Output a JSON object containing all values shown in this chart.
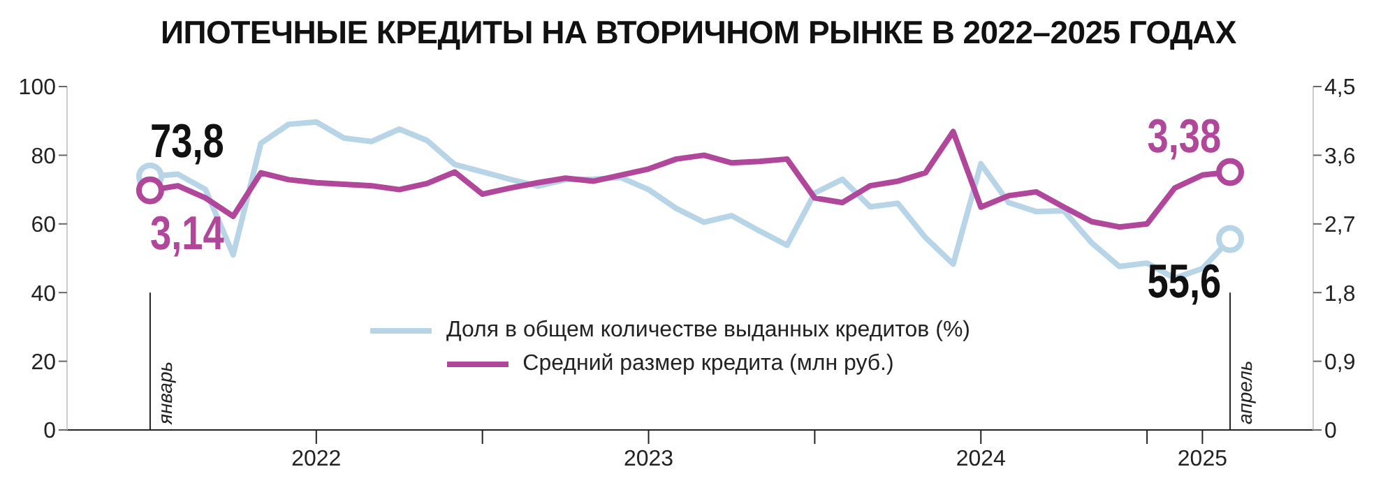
{
  "chart_data": {
    "type": "line",
    "title": "ИПОТЕЧНЫЕ КРЕДИТЫ НА ВТОРИЧНОМ РЫНКЕ В 2022–2025 ГОДАХ",
    "x": [
      "2022-01",
      "2022-02",
      "2022-03",
      "2022-04",
      "2022-05",
      "2022-06",
      "2022-07",
      "2022-08",
      "2022-09",
      "2022-10",
      "2022-11",
      "2022-12",
      "2023-01",
      "2023-02",
      "2023-03",
      "2023-04",
      "2023-05",
      "2023-06",
      "2023-07",
      "2023-08",
      "2023-09",
      "2023-10",
      "2023-11",
      "2023-12",
      "2024-01",
      "2024-02",
      "2024-03",
      "2024-04",
      "2024-05",
      "2024-06",
      "2024-07",
      "2024-08",
      "2024-09",
      "2024-10",
      "2024-11",
      "2024-12",
      "2025-01",
      "2025-02",
      "2025-03",
      "2025-04"
    ],
    "series": [
      {
        "name": "Доля в общем количестве выданных кредитов (%)",
        "color": "#b7d5e6",
        "values": [
          73.8,
          74.5,
          70,
          51,
          83.5,
          89,
          89.7,
          85,
          84,
          87.6,
          84.3,
          77.3,
          75.2,
          73,
          71,
          72.9,
          73,
          73.5,
          70,
          64.5,
          60.5,
          62.4,
          58,
          53.8,
          69,
          73,
          65,
          66,
          56,
          48.3,
          77.5,
          66.2,
          63.6,
          63.8,
          54.5,
          47.6,
          48.6,
          44.2,
          47,
          55.6
        ],
        "value_labels": [
          "73,8",
          null,
          null,
          null,
          null,
          null,
          null,
          null,
          null,
          null,
          null,
          null,
          null,
          null,
          null,
          null,
          null,
          null,
          null,
          null,
          null,
          null,
          null,
          null,
          null,
          null,
          null,
          null,
          null,
          null,
          null,
          null,
          null,
          null,
          null,
          null,
          null,
          null,
          null,
          "55,6"
        ]
      },
      {
        "name": "Средний размер кредита (млн руб.)",
        "color": "#b0479a",
        "axis": "y2",
        "values": [
          3.14,
          3.2,
          3.04,
          2.8,
          3.37,
          3.28,
          3.24,
          3.22,
          3.2,
          3.15,
          3.23,
          3.38,
          3.09,
          3.17,
          3.24,
          3.3,
          3.26,
          3.34,
          3.42,
          3.55,
          3.6,
          3.5,
          3.52,
          3.55,
          3.04,
          2.98,
          3.2,
          3.26,
          3.37,
          3.91,
          2.92,
          3.07,
          3.12,
          2.92,
          2.73,
          2.66,
          2.7,
          3.17,
          3.34,
          3.38
        ],
        "value_labels": [
          "3,14",
          null,
          null,
          null,
          null,
          null,
          null,
          null,
          null,
          null,
          null,
          null,
          null,
          null,
          null,
          null,
          null,
          null,
          null,
          null,
          null,
          null,
          null,
          null,
          null,
          null,
          null,
          null,
          null,
          null,
          null,
          null,
          null,
          null,
          null,
          null,
          null,
          null,
          null,
          "3,38"
        ]
      }
    ],
    "xlim": [
      "2021-10",
      "2025-07"
    ],
    "xticks": [
      {
        "value": "2022-07",
        "label": "2022"
      },
      {
        "value": "2023-01",
        "label": null
      },
      {
        "value": "2023-07",
        "label": "2023"
      },
      {
        "value": "2024-01",
        "label": null
      },
      {
        "value": "2024-07",
        "label": "2024"
      },
      {
        "value": "2025-01",
        "label": null
      },
      {
        "value": "2025-03",
        "label": "2025"
      }
    ],
    "ylim": [
      0,
      100
    ],
    "yticks": [
      0,
      20,
      40,
      60,
      80,
      100
    ],
    "y2lim": [
      0,
      4.5
    ],
    "y2ticks": [
      0,
      {
        "value": 0.9,
        "label": "0,9"
      },
      {
        "value": 1.8,
        "label": "1,8"
      },
      {
        "value": 2.7,
        "label": "2,7"
      },
      {
        "value": 3.6,
        "label": "3,6"
      },
      {
        "value": 4.5,
        "label": "4,5"
      }
    ],
    "annotations": [
      "январь",
      "апрель"
    ],
    "legend": "bottom",
    "marker": "none",
    "line_style": "solid"
  }
}
